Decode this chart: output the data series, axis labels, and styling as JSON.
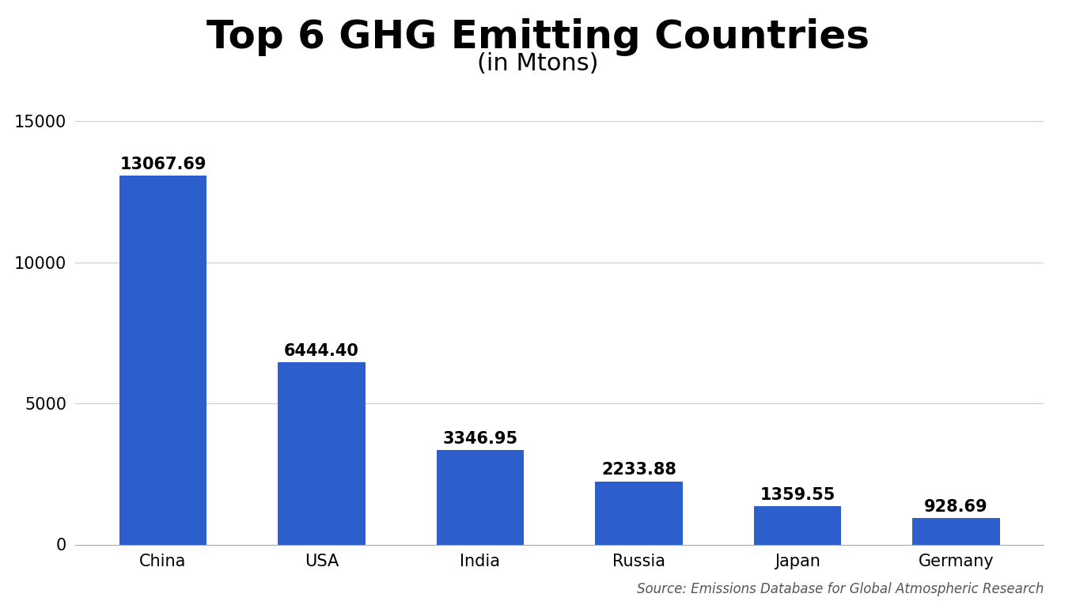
{
  "title": "Top 6 GHG Emitting Countries",
  "subtitle": "(in Mtons)",
  "categories": [
    "China",
    "USA",
    "India",
    "Russia",
    "Japan",
    "Germany"
  ],
  "values": [
    13067.69,
    6444.4,
    3346.95,
    2233.88,
    1359.55,
    928.69
  ],
  "bar_color": "#2d5fcc",
  "background_color": "#ffffff",
  "ylim": [
    0,
    15000
  ],
  "yticks": [
    0,
    5000,
    10000,
    15000
  ],
  "title_fontsize": 36,
  "subtitle_fontsize": 22,
  "value_fontsize": 15,
  "tick_fontsize": 15,
  "source_text": "Source: Emissions Database for Global Atmospheric Research",
  "source_fontsize": 12
}
